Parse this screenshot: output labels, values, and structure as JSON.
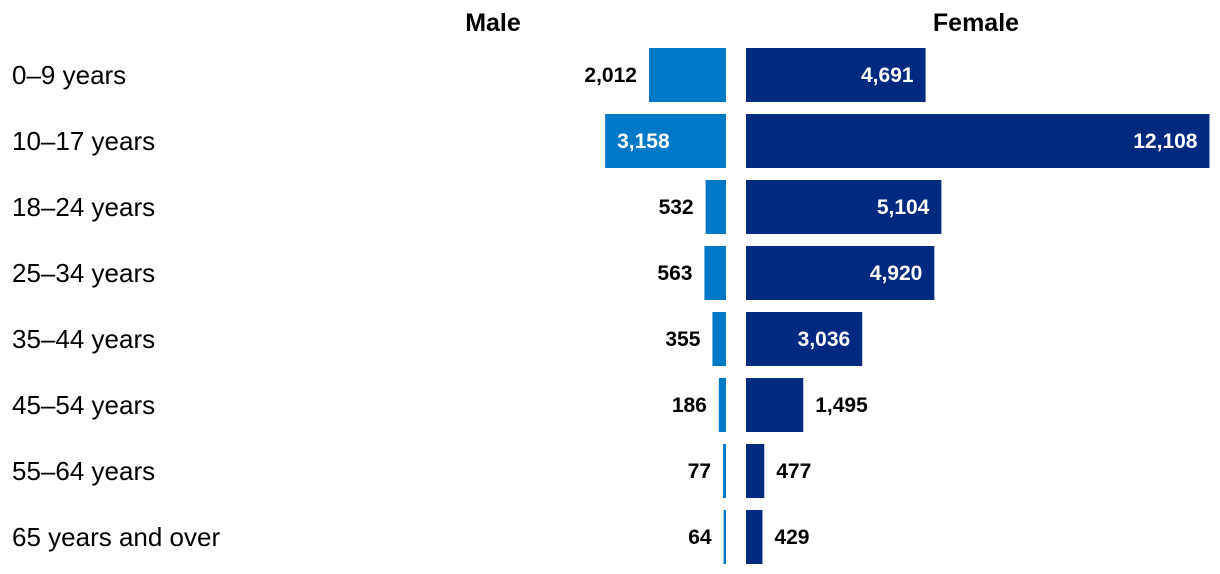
{
  "chart_data": {
    "type": "bar",
    "orientation": "horizontal",
    "layout": "population-pyramid",
    "categories": [
      "0–9 years",
      "10–17 years",
      "18–24 years",
      "25–34 years",
      "35–44 years",
      "45–54 years",
      "55–64 years",
      "65 years and over"
    ],
    "series": [
      {
        "name": "Male",
        "color": "#0078c8",
        "values": [
          2012,
          3158,
          532,
          563,
          355,
          186,
          77,
          64
        ],
        "value_labels": [
          "2,012",
          "3,158",
          "532",
          "563",
          "355",
          "186",
          "77",
          "64"
        ]
      },
      {
        "name": "Female",
        "color": "#002a80",
        "values": [
          4691,
          12108,
          5104,
          4920,
          3036,
          1495,
          477,
          429
        ],
        "value_labels": [
          "4,691",
          "12,108",
          "5,104",
          "4,920",
          "3,036",
          "1,495",
          "477",
          "429"
        ]
      }
    ],
    "value_label_colors": {
      "inside": "#ffffff",
      "outside": "#000000"
    },
    "grid": false,
    "legend": "column headers at top"
  }
}
